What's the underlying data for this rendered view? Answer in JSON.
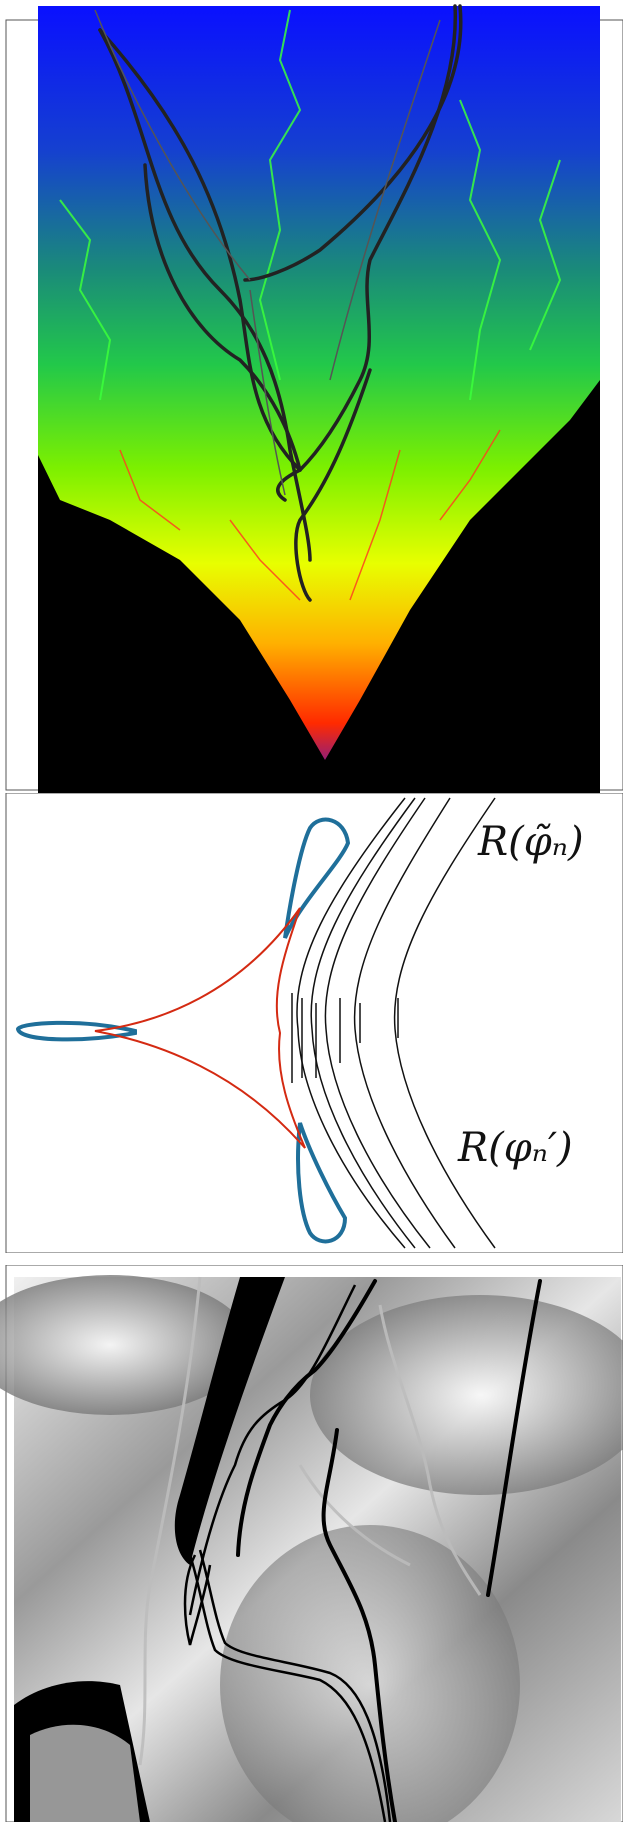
{
  "panels": [
    {
      "id": "fractal-panel",
      "kind": "color-fractal",
      "palette": [
        "#1010ff",
        "#1b7a8a",
        "#22d84a",
        "#7cff00",
        "#ffff00",
        "#ff9900",
        "#ff1a00",
        "#000000"
      ]
    },
    {
      "id": "diagram-panel",
      "kind": "line-diagram",
      "labels": {
        "upper": "R(φ̃ₙ)",
        "lower": "R(φₙ′)"
      },
      "colors": {
        "lobes": "#1f6f9a",
        "hypocycloid": "#d42a12",
        "rays": "#111111"
      }
    },
    {
      "id": "grayscale-panel",
      "kind": "grayscale-fractal",
      "palette": [
        "#ffffff",
        "#bdbdbd",
        "#6e6e6e",
        "#000000"
      ]
    }
  ]
}
